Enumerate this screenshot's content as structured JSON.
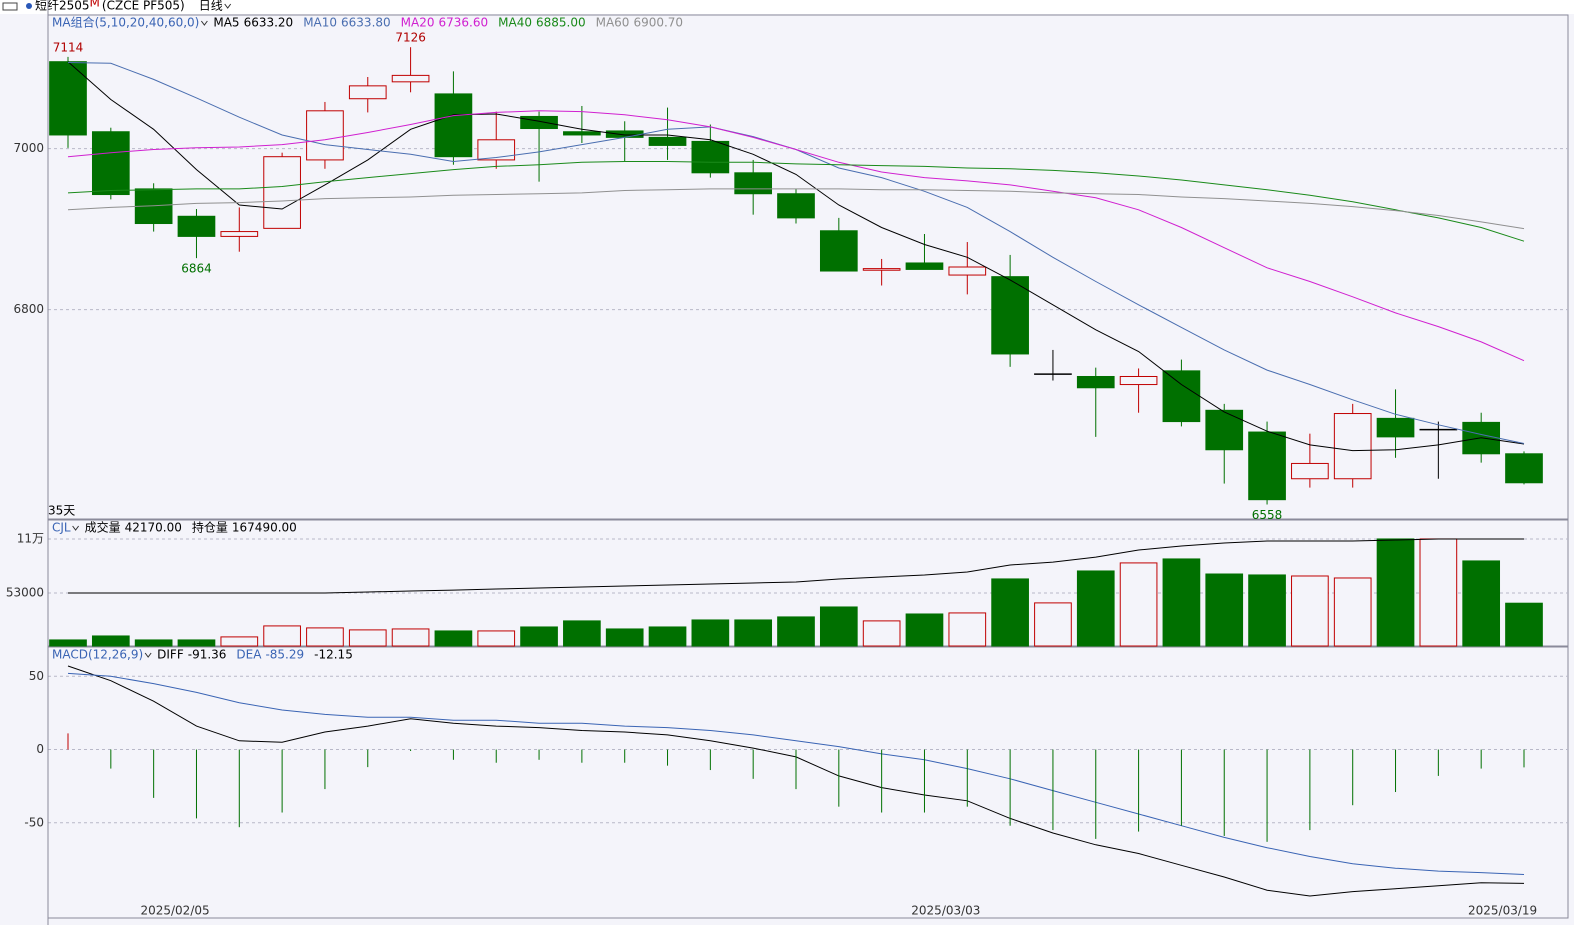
{
  "chart_data": [
    {
      "type": "candlestick",
      "title": "短纤2505",
      "title_sup": "M",
      "subtitle": "(CZCE PF505)",
      "period": "日线",
      "indicator": "MA组合(5,10,20,40,60,0)",
      "span_label": "35天",
      "categories": [
        null,
        null,
        null,
        "2025/02/05",
        null,
        null,
        null,
        null,
        null,
        null,
        null,
        null,
        null,
        null,
        null,
        null,
        null,
        null,
        null,
        null,
        null,
        "2025/03/03",
        null,
        null,
        null,
        null,
        null,
        null,
        null,
        null,
        null,
        null,
        null,
        null,
        "2025/03/19"
      ],
      "open": [
        7108,
        7021,
        6950,
        6916,
        6891,
        6901,
        6986,
        7062,
        7083,
        7068,
        6986,
        7040,
        7021,
        7022,
        7014,
        7009,
        6970,
        6944,
        6898,
        6849,
        6858,
        6843,
        6841,
        6720,
        6717,
        6707,
        6724,
        6675,
        6648,
        6590,
        6590,
        6665,
        6651,
        6660,
        6621
      ],
      "high": [
        7114,
        7026,
        6957,
        6925,
        6927,
        6995,
        7058,
        7089,
        7126,
        7096,
        7046,
        7046,
        7053,
        7034,
        7051,
        7030,
        6986,
        6950,
        6914,
        6863,
        6894,
        6884,
        6868,
        6750,
        6728,
        6727,
        6738,
        6683,
        6661,
        6646,
        6683,
        6701,
        6661,
        6672,
        6624
      ],
      "low": [
        7001,
        6937,
        6897,
        6864,
        6872,
        6901,
        6975,
        7045,
        7070,
        6980,
        6975,
        6959,
        7007,
        6984,
        6986,
        6964,
        6918,
        6907,
        6848,
        6830,
        6850,
        6819,
        6729,
        6712,
        6642,
        6672,
        6655,
        6584,
        6558,
        6579,
        6579,
        6616,
        6590,
        6610,
        6583
      ],
      "close": [
        7017,
        6943,
        6907,
        6891,
        6897,
        6990,
        7047,
        7078,
        7091,
        6990,
        7011,
        7025,
        7017,
        7014,
        7004,
        6970,
        6944,
        6914,
        6848,
        6851,
        6850,
        6853,
        6745,
        6720,
        6703,
        6717,
        6661,
        6626,
        6564,
        6609,
        6671,
        6642,
        6651,
        6621,
        6585
      ],
      "up_color": "#c00000",
      "down_color": "#007000",
      "flat_color": "#000000",
      "high_label_color": "#b00000",
      "low_label_color": "#007000",
      "series": [
        {
          "name": "MA5",
          "current": "6633.20",
          "color": "#000000",
          "values": [
            7108,
            7061,
            7024,
            6974,
            6930,
            6925,
            6955,
            6986,
            7024,
            7042,
            7043,
            7034,
            7024,
            7017,
            7017,
            7011,
            6993,
            6968,
            6930,
            6902,
            6881,
            6865,
            6837,
            6806,
            6775,
            6748,
            6707,
            6673,
            6649,
            6632,
            6625,
            6626,
            6632,
            6641,
            6633.2
          ]
        },
        {
          "name": "MA10",
          "current": "6633.80",
          "color": "#4a6eb0",
          "values": [
            7107,
            7106,
            7086,
            7063,
            7039,
            7017,
            7005,
            6999,
            6993,
            6984,
            6989,
            6996,
            7005,
            7014,
            7024,
            7027,
            7015,
            6999,
            6976,
            6964,
            6947,
            6927,
            6897,
            6865,
            6835,
            6806,
            6778,
            6750,
            6725,
            6707,
            6688,
            6670,
            6657,
            6645,
            6633.8
          ]
        },
        {
          "name": "MA20",
          "current": "6736.60",
          "color": "#d020d0",
          "values": [
            6990,
            6995,
            6999,
            7001,
            7002,
            7005,
            7011,
            7020,
            7030,
            7041,
            7045,
            7047,
            7046,
            7042,
            7036,
            7027,
            7014,
            6999,
            6983,
            6971,
            6964,
            6960,
            6955,
            6947,
            6939,
            6924,
            6902,
            6877,
            6852,
            6835,
            6816,
            6796,
            6779,
            6760,
            6736.6
          ]
        },
        {
          "name": "MA40",
          "current": "6885.00",
          "color": "#1a8a1a",
          "values": [
            6945,
            6948,
            6949,
            6950,
            6950,
            6953,
            6959,
            6964,
            6969,
            6974,
            6978,
            6980,
            6983,
            6984,
            6984,
            6983,
            6983,
            6981,
            6980,
            6979,
            6978,
            6976,
            6975,
            6973,
            6970,
            6966,
            6961,
            6955,
            6949,
            6942,
            6934,
            6924,
            6914,
            6902,
            6885
          ]
        },
        {
          "name": "MA60",
          "current": "6900.70",
          "color": "#909090",
          "values": [
            6924,
            6927,
            6929,
            6932,
            6933,
            6935,
            6938,
            6939,
            6940,
            6942,
            6943,
            6944,
            6945,
            6948,
            6949,
            6950,
            6950,
            6950,
            6950,
            6949,
            6949,
            6948,
            6947,
            6945,
            6944,
            6943,
            6940,
            6938,
            6935,
            6932,
            6928,
            6923,
            6917,
            6909,
            6900.7
          ]
        }
      ],
      "ylim": [
        6540,
        7166
      ],
      "yticks": [
        6800,
        7000
      ],
      "grid": true
    },
    {
      "type": "volume",
      "indicator": "CJL",
      "series": [
        {
          "name": "成交量",
          "current": "42170.00",
          "up_color": "#c00000",
          "down_color": "#007000",
          "values": [
            3400,
            7600,
            3400,
            3400,
            6600,
            18200,
            16100,
            14000,
            15000,
            12900,
            12900,
            17100,
            23500,
            15000,
            17100,
            24500,
            24500,
            27700,
            38200,
            23500,
            30800,
            31900,
            67800,
            42500,
            76200,
            84700,
            88900,
            73000,
            72000,
            70900,
            68800,
            110000,
            110000,
            86800,
            42170
          ]
        },
        {
          "name": "持仓量",
          "current": "167490.00",
          "color": "#000000",
          "axis": "y2",
          "values": [
            120000,
            120000,
            120000,
            120000,
            120000,
            120000,
            120000,
            120900,
            121800,
            122600,
            123500,
            124400,
            125300,
            126200,
            127000,
            127900,
            128800,
            129700,
            132300,
            134100,
            135800,
            138500,
            144600,
            147200,
            151600,
            157800,
            161300,
            164000,
            165700,
            165700,
            165700,
            166600,
            167490,
            167490,
            167490
          ]
        }
      ],
      "ylim": [
        -3000,
        130000
      ],
      "yticks": [
        53000,
        {
          "value": 110000,
          "label": "11万"
        }
      ],
      "y2lim": [
        73400,
        184200
      ],
      "grid": true
    },
    {
      "type": "macd",
      "indicator": "MACD(12,26,9)",
      "series": [
        {
          "name": "DIFF",
          "current": "-91.36",
          "color": "#000000",
          "values": [
            57,
            47,
            33,
            16,
            6,
            5,
            12,
            16,
            21,
            18,
            16,
            15,
            13,
            12,
            10,
            6,
            1,
            -5,
            -18,
            -26,
            -31,
            -35,
            -47,
            -57,
            -65,
            -71,
            -79,
            -87,
            -96,
            -100,
            -97,
            -95,
            -93,
            -91,
            -91.36
          ]
        },
        {
          "name": "DEA",
          "current": "-85.29",
          "color": "#3a64b4",
          "values": [
            52,
            50,
            45,
            39,
            32,
            27,
            24,
            22,
            22,
            20,
            20,
            18,
            18,
            16,
            15,
            13,
            10,
            6,
            2,
            -3,
            -7,
            -13,
            -20,
            -28,
            -36,
            -44,
            -52,
            -60,
            -67,
            -73,
            -78,
            -81,
            -83,
            -84,
            -85.29
          ]
        },
        {
          "current": "-12.15",
          "up_color": "#c00000",
          "down_color": "#007000",
          "values": [
            11,
            -13,
            -33,
            -47,
            -53,
            -43,
            -27,
            -12,
            -1,
            -7,
            -9,
            -7,
            -9,
            -9,
            -11,
            -14,
            -20,
            -27,
            -39,
            -43,
            -43,
            -39,
            -52,
            -55,
            -61,
            -56,
            -52,
            -59,
            -63,
            -55,
            -38,
            -29,
            -18,
            -13,
            -12.15
          ]
        }
      ],
      "ylim": [
        -115,
        70
      ],
      "yticks": [
        50,
        0,
        -50
      ],
      "grid": true
    }
  ]
}
